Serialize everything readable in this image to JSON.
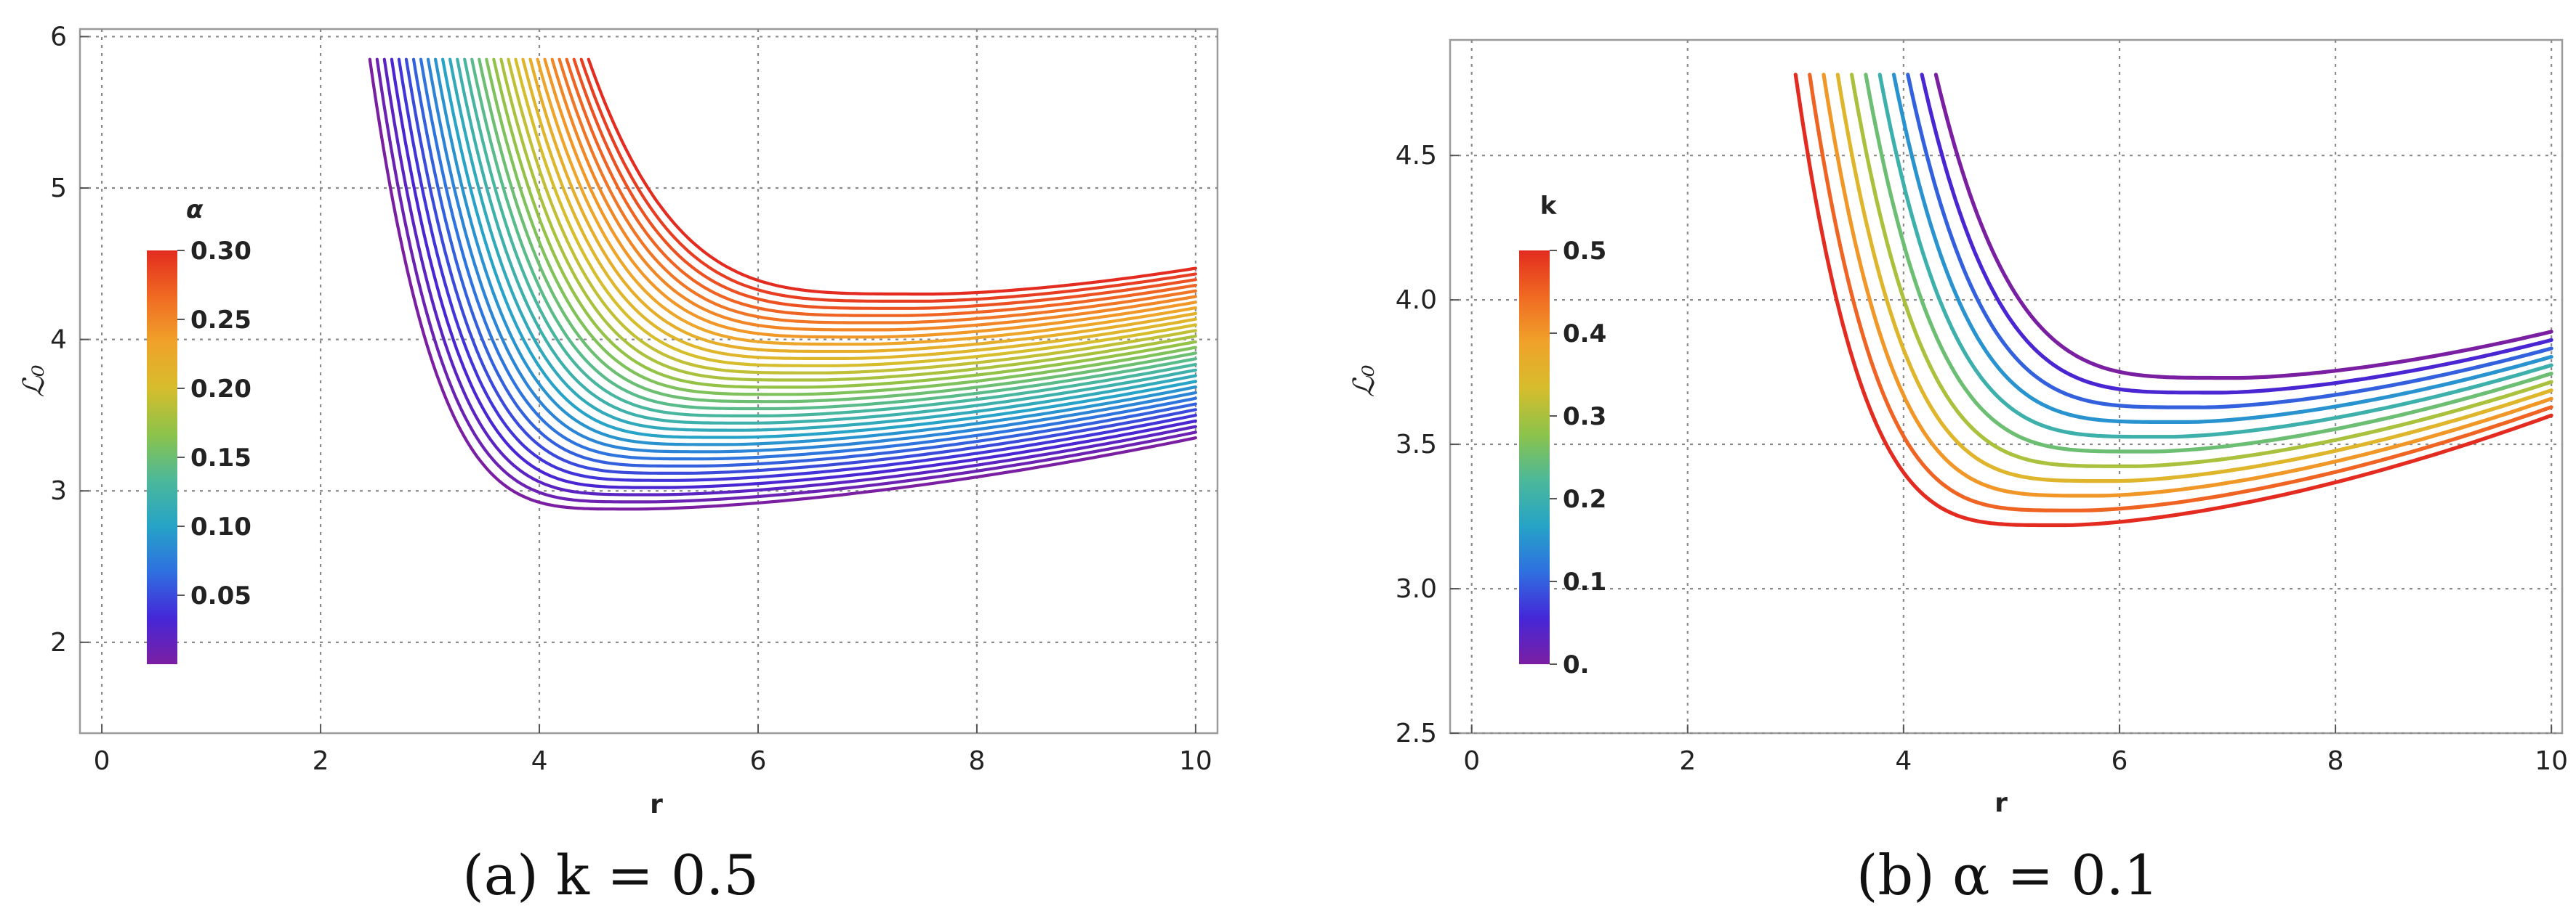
{
  "chart_data": [
    {
      "type": "line",
      "caption": "(a) k = 0.5",
      "xlabel": "r",
      "ylabel": "ℒ₀",
      "xlim": [
        -0.2,
        10.2
      ],
      "ylim": [
        1.4,
        6.05
      ],
      "xticks": [
        0,
        2,
        4,
        6,
        8,
        10
      ],
      "xtick_labels": [
        "0",
        "2",
        "4",
        "6",
        "8",
        "10"
      ],
      "yticks": [
        2,
        3,
        4,
        5,
        6
      ],
      "ytick_labels": [
        "2",
        "3",
        "4",
        "5",
        "6"
      ],
      "grid": true,
      "legend": {
        "title": "α",
        "type": "colorbar",
        "placement": "left",
        "range": [
          0,
          0.3
        ],
        "ticks": [
          0.05,
          0.1,
          0.15,
          0.2,
          0.25,
          0.3
        ],
        "tick_labels": [
          "0.05",
          "0.10",
          "0.15",
          "0.20",
          "0.25",
          "0.30"
        ]
      },
      "parameter": {
        "name": "α",
        "values": [
          0.0,
          0.01,
          0.02,
          0.03,
          0.04,
          0.05,
          0.06,
          0.07,
          0.08,
          0.09,
          0.1,
          0.11,
          0.12,
          0.13,
          0.14,
          0.15,
          0.16,
          0.17,
          0.18,
          0.19,
          0.2,
          0.21,
          0.22,
          0.23,
          0.24,
          0.25,
          0.26,
          0.27,
          0.28,
          0.29,
          0.3
        ]
      },
      "series_summary": {
        "r_start_first": 2.45,
        "r_start_last": 4.45,
        "r_end": 10,
        "start_value": 5.85,
        "min_r_first": 4.9,
        "min_value_first": 2.88,
        "min_r_last": 7.6,
        "min_value_last": 4.3,
        "end_value_first": 3.35,
        "end_value_last": 4.47
      }
    },
    {
      "type": "line",
      "caption": "(b) α = 0.1",
      "xlabel": "r",
      "ylabel": "ℒ₀",
      "xlim": [
        -0.2,
        10.1
      ],
      "ylim": [
        2.5,
        4.9
      ],
      "xticks": [
        0,
        2,
        4,
        6,
        8,
        10
      ],
      "xtick_labels": [
        "0",
        "2",
        "4",
        "6",
        "8",
        "10"
      ],
      "yticks": [
        2.5,
        3.0,
        3.5,
        4.0,
        4.5
      ],
      "ytick_labels": [
        "2.5",
        "3.0",
        "3.5",
        "4.0",
        "4.5"
      ],
      "grid": true,
      "legend": {
        "title": "k",
        "type": "colorbar",
        "placement": "left",
        "range": [
          0,
          0.5
        ],
        "ticks": [
          0.0,
          0.1,
          0.2,
          0.3,
          0.4,
          0.5
        ],
        "tick_labels": [
          "0.",
          "0.1",
          "0.2",
          "0.3",
          "0.4",
          "0.5"
        ]
      },
      "parameter": {
        "name": "k",
        "values": [
          0.0,
          0.05,
          0.1,
          0.15,
          0.2,
          0.25,
          0.3,
          0.35,
          0.4,
          0.45,
          0.5
        ]
      },
      "series_summary": {
        "r_start_first": 4.3,
        "r_start_last": 3.0,
        "r_end": 10,
        "start_value": 4.78,
        "min_r_first": 7.1,
        "min_value_first": 3.73,
        "min_r_last": 5.5,
        "min_value_last": 3.22,
        "end_value_first": 3.89,
        "end_value_last": 3.6
      }
    }
  ],
  "rainbow": [
    "#7b1fa2",
    "#4527d8",
    "#2f6fe0",
    "#26a3c7",
    "#4cb89a",
    "#8cc34a",
    "#d6bd2c",
    "#f0a22a",
    "#f06a22",
    "#e32b20"
  ]
}
